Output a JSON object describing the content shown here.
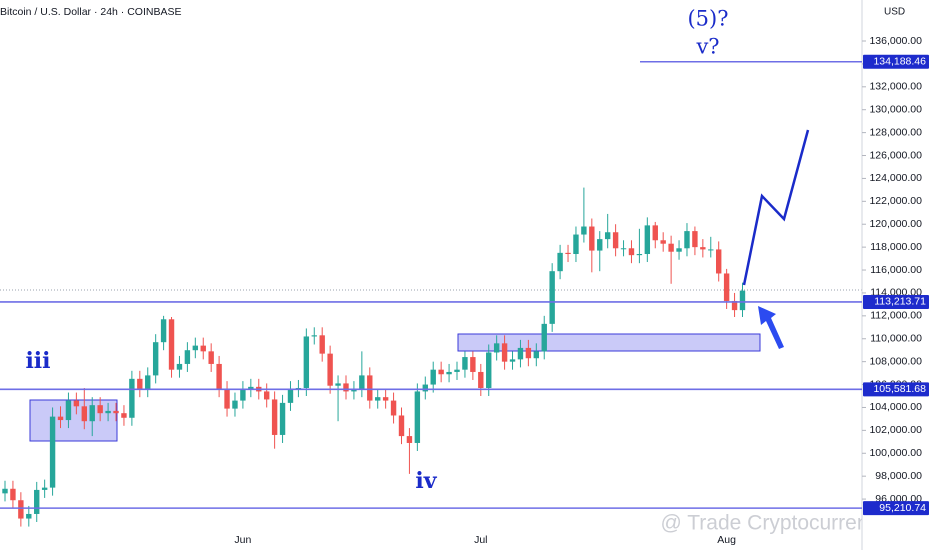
{
  "chart_data": {
    "type": "candlestick",
    "title": "Bitcoin / U.S. Dollar · 24h · COINBASE",
    "currency": "USD",
    "categories": [
      null,
      null,
      null,
      null,
      null,
      null,
      null,
      null,
      null,
      null,
      null,
      null,
      null,
      null,
      null,
      null,
      null,
      null,
      null,
      null,
      null,
      null,
      null,
      null,
      null,
      null,
      null,
      null,
      null,
      null,
      "Jun",
      null,
      null,
      null,
      null,
      null,
      null,
      null,
      null,
      null,
      null,
      null,
      null,
      null,
      null,
      null,
      null,
      null,
      null,
      null,
      null,
      null,
      null,
      null,
      null,
      null,
      null,
      null,
      null,
      null,
      "Jul",
      null,
      null,
      null,
      null,
      null,
      null,
      null,
      null,
      null,
      null,
      null,
      null,
      null,
      null,
      null,
      null,
      null,
      null,
      null,
      null,
      null,
      null,
      null,
      null,
      null,
      null,
      null,
      null,
      null,
      null,
      "Aug",
      null,
      null
    ],
    "open": [
      96500,
      96900,
      95900,
      94300,
      94700,
      96800,
      97000,
      103200,
      102900,
      104600,
      104100,
      102800,
      104200,
      103500,
      103700,
      103500,
      103100,
      106500,
      105600,
      106800,
      109700,
      111700,
      107300,
      107800,
      109000,
      109400,
      108900,
      107800,
      105600,
      103900,
      104600,
      105600,
      105800,
      105400,
      104700,
      101600,
      104400,
      105600,
      105700,
      110200,
      110300,
      108700,
      105900,
      106100,
      105400,
      105600,
      106800,
      104600,
      104900,
      104600,
      103300,
      101500,
      100900,
      105400,
      106000,
      107300,
      106900,
      107100,
      107300,
      108400,
      107100,
      105700,
      108800,
      109600,
      108000,
      108200,
      109200,
      108300,
      108900,
      111300,
      115900,
      117500,
      117400,
      119100,
      119800,
      117700,
      118700,
      119300,
      117900,
      117900,
      117300,
      117400,
      119900,
      118600,
      118300,
      117600,
      117900,
      119400,
      118000,
      117800,
      117800,
      115700,
      113300,
      112500
    ],
    "high": [
      97600,
      97600,
      96600,
      95400,
      97500,
      97700,
      104000,
      104100,
      105300,
      105300,
      105700,
      104900,
      104900,
      104400,
      104400,
      104200,
      107200,
      107200,
      107500,
      110400,
      112000,
      111900,
      108500,
      109700,
      110100,
      110100,
      109600,
      108500,
      106300,
      105300,
      106300,
      106500,
      106500,
      106100,
      105400,
      105100,
      106300,
      106400,
      110900,
      111000,
      111000,
      109400,
      106800,
      106800,
      106300,
      108900,
      107500,
      105600,
      105600,
      105300,
      104000,
      102200,
      106100,
      106700,
      108000,
      108000,
      107800,
      108000,
      108900,
      108900,
      107800,
      109500,
      110300,
      110300,
      108900,
      109900,
      109900,
      109600,
      112000,
      116600,
      118200,
      118200,
      119800,
      123200,
      120500,
      119400,
      120900,
      120000,
      118600,
      118600,
      119600,
      120600,
      120200,
      119300,
      119000,
      118600,
      120100,
      119800,
      118700,
      118900,
      118500,
      116100,
      114000,
      114900
    ],
    "low": [
      95800,
      95200,
      93600,
      93600,
      94000,
      96100,
      96300,
      102200,
      102200,
      103400,
      102100,
      101500,
      102800,
      102800,
      102800,
      102400,
      102400,
      104900,
      104900,
      106100,
      109000,
      106600,
      106600,
      107100,
      108300,
      108200,
      107100,
      104900,
      103200,
      103200,
      103900,
      104900,
      104700,
      104000,
      100400,
      100900,
      103700,
      104900,
      105000,
      109500,
      108000,
      105200,
      102800,
      104700,
      104700,
      104900,
      103900,
      103900,
      103900,
      102600,
      100800,
      98200,
      100200,
      104700,
      105300,
      106200,
      106200,
      106400,
      106600,
      106400,
      105000,
      105000,
      108100,
      107300,
      107300,
      107500,
      107600,
      107600,
      108200,
      110600,
      115200,
      116700,
      116700,
      118400,
      115800,
      115900,
      117900,
      117200,
      117200,
      116600,
      116600,
      116700,
      117900,
      117600,
      114800,
      116900,
      117200,
      117300,
      117100,
      117100,
      115000,
      112600,
      111900,
      111900
    ],
    "close": [
      96900,
      95900,
      94300,
      94700,
      96800,
      97000,
      103200,
      102900,
      104600,
      104100,
      102800,
      104200,
      103500,
      103700,
      103500,
      103100,
      106500,
      105600,
      106800,
      109700,
      111700,
      107300,
      107800,
      109000,
      109400,
      108900,
      107800,
      105600,
      103900,
      104600,
      105600,
      105800,
      105400,
      104700,
      101600,
      104400,
      105600,
      105700,
      110200,
      110300,
      108700,
      105900,
      106100,
      105400,
      105600,
      106800,
      104600,
      104900,
      104600,
      103300,
      101500,
      100900,
      105400,
      106000,
      107300,
      106900,
      107100,
      107300,
      108400,
      107100,
      105700,
      108800,
      109600,
      108000,
      108200,
      109200,
      108300,
      108900,
      111300,
      115900,
      117500,
      117400,
      119100,
      119800,
      117700,
      118700,
      119300,
      117900,
      117900,
      117300,
      117400,
      119900,
      118600,
      118300,
      117600,
      117900,
      119400,
      118000,
      117800,
      117800,
      115700,
      113300,
      112500,
      114200
    ],
    "up_color": "#26a69a",
    "down_color": "#ef5350",
    "ylim": [
      93300,
      139580
    ],
    "yticks": [
      {
        "value": 96000,
        "label": "96,000.00"
      },
      {
        "value": 98000,
        "label": "98,000.00"
      },
      {
        "value": 100000,
        "label": "100,000.00"
      },
      {
        "value": 102000,
        "label": "102,000.00"
      },
      {
        "value": 104000,
        "label": "104,000.00"
      },
      {
        "value": 106000,
        "label": "106,000.00"
      },
      {
        "value": 108000,
        "label": "108,000.00"
      },
      {
        "value": 110000,
        "label": "110,000.00"
      },
      {
        "value": 112000,
        "label": "112,000.00"
      },
      {
        "value": 114000,
        "label": "114,000.00"
      },
      {
        "value": 116000,
        "label": "116,000.00"
      },
      {
        "value": 118000,
        "label": "118,000.00"
      },
      {
        "value": 120000,
        "label": "120,000.00"
      },
      {
        "value": 122000,
        "label": "122,000.00"
      },
      {
        "value": 124000,
        "label": "124,000.00"
      },
      {
        "value": 126000,
        "label": "126,000.00"
      },
      {
        "value": 128000,
        "label": "128,000.00"
      },
      {
        "value": 130000,
        "label": "130,000.00"
      },
      {
        "value": 132000,
        "label": "132,000.00"
      },
      {
        "value": 134000,
        "label": "134,000.00"
      },
      {
        "value": 136000,
        "label": "136,000.00"
      }
    ],
    "levels": [
      {
        "value": 134188.46,
        "label": "134,188.46"
      },
      {
        "value": 113213.71,
        "label": "113,213.71"
      },
      {
        "value": 105581.68,
        "label": "105,581.68"
      },
      {
        "value": 95210.74,
        "label": "95,210.74"
      }
    ],
    "level_color": "#6e6ee6",
    "annotations": [
      "(5)?",
      "v?",
      "iii",
      "iv"
    ],
    "watermark": "@ Trade Cryptocurrency"
  }
}
